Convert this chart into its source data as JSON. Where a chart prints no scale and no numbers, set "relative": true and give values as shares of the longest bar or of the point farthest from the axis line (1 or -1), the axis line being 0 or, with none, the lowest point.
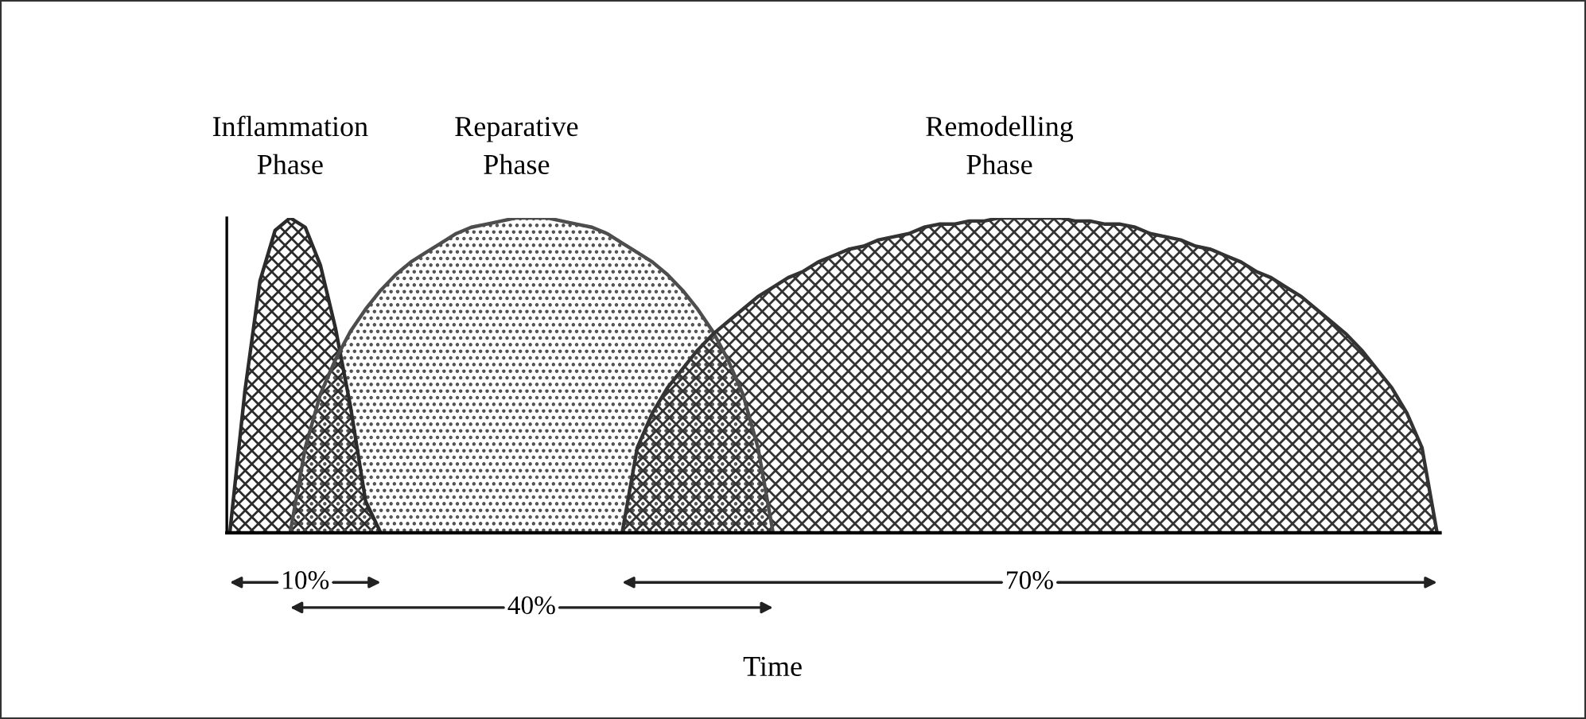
{
  "chart_data": {
    "type": "area",
    "relative": true,
    "xlabel": "Time",
    "categories": [
      null,
      null,
      null,
      null,
      null,
      null,
      null,
      null,
      null,
      null,
      null,
      null,
      null,
      null,
      null,
      null,
      null,
      null,
      null,
      null,
      null,
      null,
      null,
      null,
      null,
      null,
      null,
      null,
      null,
      null,
      null,
      null,
      null,
      null,
      null,
      null,
      null,
      null,
      null,
      null,
      null,
      null,
      null,
      null,
      null,
      null,
      null,
      null,
      null,
      null,
      null,
      null,
      null,
      null,
      null,
      null,
      null,
      null,
      null,
      null,
      null,
      null,
      null,
      null,
      null,
      null,
      null,
      null,
      null,
      null,
      null,
      null,
      null,
      null,
      null,
      null,
      null,
      null,
      null,
      null,
      null
    ],
    "series": [
      {
        "name": "Inflammation Phase",
        "color": "#2b2b2b",
        "values": [
          0,
          0.45,
          0.8,
          0.96,
          1,
          0.97,
          0.85,
          0.65,
          0.4,
          0.1,
          0,
          null,
          null,
          null,
          null,
          null,
          null,
          null,
          null,
          null,
          null,
          null,
          null,
          null,
          null,
          null,
          null,
          null,
          null,
          null,
          null,
          null,
          null,
          null,
          null,
          null,
          null,
          null,
          null,
          null,
          null,
          null,
          null,
          null,
          null,
          null,
          null,
          null,
          null,
          null,
          null,
          null,
          null,
          null,
          null,
          null,
          null,
          null,
          null,
          null,
          null,
          null,
          null,
          null,
          null,
          null,
          null,
          null,
          null,
          null,
          null,
          null,
          null,
          null,
          null,
          null,
          null,
          null,
          null,
          null,
          null
        ]
      },
      {
        "name": "Reparative Phase",
        "color": "#4d4d4d",
        "values": [
          null,
          null,
          null,
          null,
          0,
          0.27,
          0.44,
          0.55,
          0.64,
          0.71,
          0.77,
          0.82,
          0.86,
          0.89,
          0.92,
          0.95,
          0.97,
          0.98,
          0.99,
          1,
          1,
          1,
          0.99,
          0.98,
          0.97,
          0.95,
          0.92,
          0.89,
          0.86,
          0.82,
          0.77,
          0.71,
          0.64,
          0.55,
          0.44,
          0.27,
          0,
          null,
          null,
          null,
          null,
          null,
          null,
          null,
          null,
          null,
          null,
          null,
          null,
          null,
          null,
          null,
          null,
          null,
          null,
          null,
          null,
          null,
          null,
          null,
          null,
          null,
          null,
          null,
          null,
          null,
          null,
          null,
          null,
          null,
          null,
          null,
          null,
          null,
          null,
          null,
          null,
          null,
          null,
          null,
          null
        ]
      },
      {
        "name": "Remodelling Phase",
        "color": "#333333",
        "values": [
          null,
          null,
          null,
          null,
          null,
          null,
          null,
          null,
          null,
          null,
          null,
          null,
          null,
          null,
          null,
          null,
          null,
          null,
          null,
          null,
          null,
          null,
          null,
          null,
          null,
          null,
          0,
          0.27,
          0.38,
          0.46,
          0.52,
          0.58,
          0.63,
          0.67,
          0.71,
          0.75,
          0.78,
          0.81,
          0.83,
          0.86,
          0.88,
          0.9,
          0.91,
          0.93,
          0.94,
          0.95,
          0.97,
          0.98,
          0.98,
          0.99,
          0.99,
          1,
          1,
          1,
          1,
          1,
          0.99,
          0.99,
          0.98,
          0.98,
          0.97,
          0.95,
          0.94,
          0.93,
          0.91,
          0.9,
          0.88,
          0.86,
          0.83,
          0.81,
          0.78,
          0.75,
          0.71,
          0.67,
          0.63,
          0.58,
          0.52,
          0.46,
          0.38,
          0.27,
          0
        ]
      }
    ],
    "annotations": [
      "10%",
      "40%",
      "70%"
    ]
  }
}
